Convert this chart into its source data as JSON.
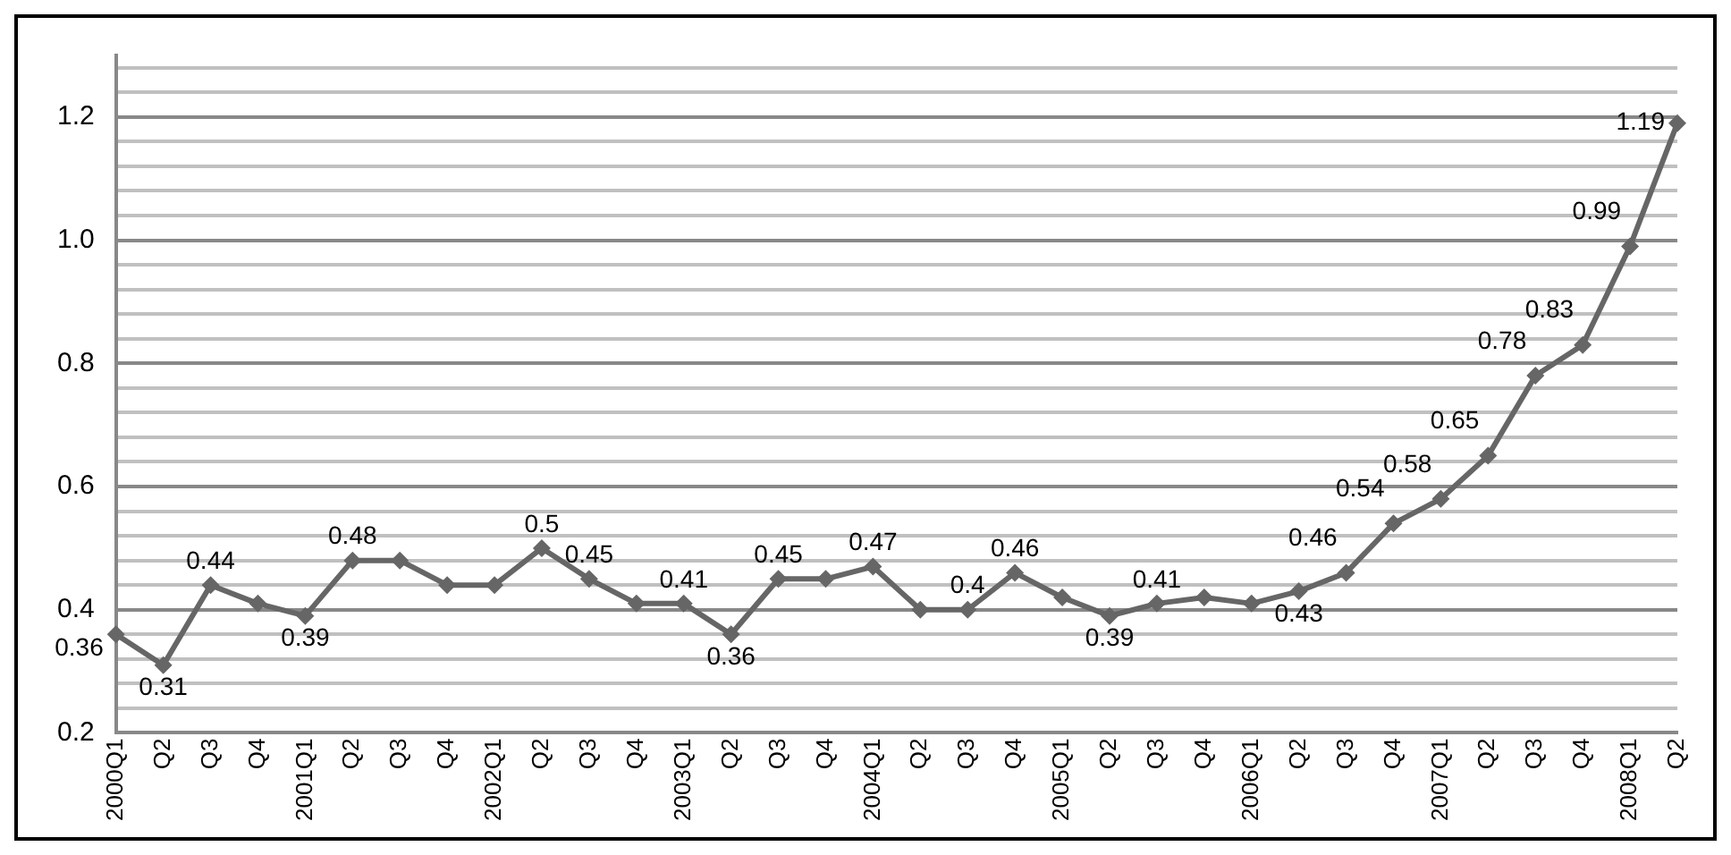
{
  "chart_data": {
    "type": "line",
    "categories": [
      "2000Q1",
      "Q2",
      "Q3",
      "Q4",
      "2001Q1",
      "Q2",
      "Q3",
      "Q4",
      "2002Q1",
      "Q2",
      "Q3",
      "Q4",
      "2003Q1",
      "Q2",
      "Q3",
      "Q4",
      "2004Q1",
      "Q2",
      "Q3",
      "Q4",
      "2005Q1",
      "Q2",
      "Q3",
      "Q4",
      "2006Q1",
      "Q2",
      "Q3",
      "Q4",
      "2007Q1",
      "Q2",
      "Q3",
      "Q4",
      "2008Q1",
      "Q2"
    ],
    "series": [
      {
        "color": "#666666",
        "values": [
          0.36,
          0.31,
          0.44,
          0.41,
          0.39,
          0.48,
          0.48,
          0.44,
          0.44,
          0.5,
          0.45,
          0.41,
          0.41,
          0.36,
          0.45,
          0.45,
          0.47,
          0.4,
          0.4,
          0.46,
          0.42,
          0.39,
          0.41,
          0.42,
          0.41,
          0.43,
          0.46,
          0.54,
          0.58,
          0.65,
          0.78,
          0.83,
          0.99,
          1.19
        ],
        "value_labels": [
          "0.36",
          "0.31",
          "0.44",
          null,
          "0.39",
          "0.48",
          null,
          null,
          null,
          "0.5",
          "0.45",
          null,
          "0.41",
          "0.36",
          "0.45",
          null,
          "0.47",
          null,
          "0.4",
          "0.46",
          null,
          "0.39",
          "0.41",
          null,
          null,
          "0.43",
          "0.46",
          "0.54",
          "0.58",
          "0.65",
          "0.78",
          "0.83",
          "0.99",
          "1.19"
        ]
      }
    ],
    "ylim": [
      0.2,
      1.3
    ],
    "yticks": [
      0.2,
      {
        "value": 0.24,
        "label": null
      },
      {
        "value": 0.28,
        "label": null
      },
      {
        "value": 0.32,
        "label": null
      },
      {
        "value": 0.36,
        "label": null
      },
      0.4,
      {
        "value": 0.44,
        "label": null
      },
      {
        "value": 0.48,
        "label": null
      },
      {
        "value": 0.52,
        "label": null
      },
      {
        "value": 0.56,
        "label": null
      },
      0.6,
      {
        "value": 0.64,
        "label": null
      },
      {
        "value": 0.68,
        "label": null
      },
      {
        "value": 0.72,
        "label": null
      },
      {
        "value": 0.76,
        "label": null
      },
      0.8,
      {
        "value": 0.84,
        "label": null
      },
      {
        "value": 0.88,
        "label": null
      },
      {
        "value": 0.92,
        "label": null
      },
      {
        "value": 0.96,
        "label": null
      },
      {
        "value": 1.0,
        "label": "1.0"
      },
      {
        "value": 1.04,
        "label": null
      },
      {
        "value": 1.08,
        "label": null
      },
      {
        "value": 1.12,
        "label": null
      },
      {
        "value": 1.16,
        "label": null
      },
      1.2,
      {
        "value": 1.24,
        "label": null
      },
      {
        "value": 1.28,
        "label": null
      }
    ],
    "grid": "y",
    "legend": false,
    "marker": "diamond",
    "line_style": "solid"
  }
}
